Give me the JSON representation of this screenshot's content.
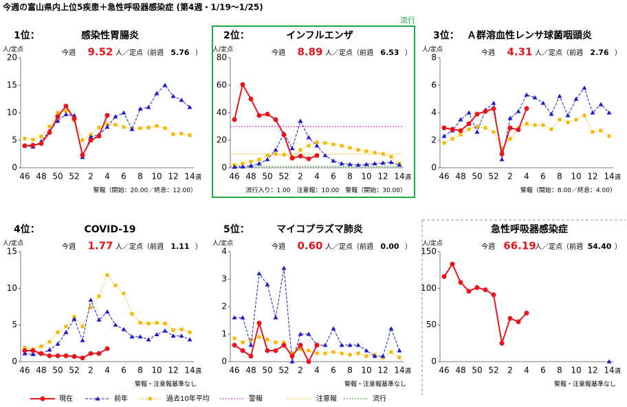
{
  "title": "今週の富山県内上位5疾患＋急性呼吸器感染症 (第4週・1/19～1/25)",
  "legend": [
    {
      "name": "現在",
      "color": "#e8141b",
      "style": "solid",
      "marker": "circle"
    },
    {
      "name": "前年",
      "color": "#1a1acc",
      "style": "dashed",
      "marker": "triangle"
    },
    {
      "name": "過去10年平均",
      "color": "#f5b800",
      "style": "dotted",
      "marker": "square"
    },
    {
      "name": "警報",
      "color": "#e000e0",
      "style": "dotted"
    },
    {
      "name": "注意報",
      "color": "#f5b800",
      "style": "dotted"
    },
    {
      "name": "流行",
      "color": "#2a9a2a",
      "style": "dotted"
    }
  ],
  "chart_data": [
    {
      "type": "line",
      "rank": "1位：",
      "title": "感染性胃腸炎",
      "this_week_label": "今週",
      "this_week": "9.52",
      "unit_text": "人／定点（前週",
      "prev_week": "5.76",
      "close": "）",
      "y_label": "人/定点",
      "x_unit": "週",
      "note": "警報（開始：20.00／終息：12.00）",
      "categories": [
        46,
        null,
        48,
        null,
        50,
        null,
        52,
        null,
        2,
        null,
        4,
        null,
        6,
        null,
        8,
        null,
        10,
        null,
        12,
        null,
        14
      ],
      "ylim": [
        0,
        20
      ],
      "yticks": [
        0,
        5,
        10,
        15,
        20
      ],
      "series": [
        {
          "color": "#e8141b",
          "style": "solid",
          "marker": "circle",
          "values": [
            4.0,
            4.1,
            4.4,
            6.4,
            9.3,
            11.2,
            8.9,
            2.3,
            5.0,
            5.76,
            9.52,
            null,
            null,
            null,
            null,
            null,
            null,
            null,
            null,
            null,
            null
          ]
        },
        {
          "color": "#1a1acc",
          "style": "dashed",
          "marker": "triangle",
          "values": [
            4.0,
            3.8,
            4.8,
            6.7,
            8.5,
            9.7,
            9.5,
            1.9,
            5.6,
            6.0,
            7.4,
            9.3,
            10.0,
            7.0,
            10.7,
            11.0,
            13.5,
            15.0,
            13.0,
            12.3,
            11.0
          ]
        },
        {
          "color": "#f5b800",
          "style": "dotted",
          "marker": "square",
          "values": [
            5.3,
            5.1,
            5.7,
            7.5,
            10.0,
            10.3,
            8.6,
            5.0,
            6.0,
            7.3,
            7.9,
            7.8,
            7.4,
            7.1,
            7.2,
            7.3,
            7.6,
            7.2,
            6.1,
            6.2,
            5.9
          ]
        }
      ]
    },
    {
      "type": "line",
      "rank": "2位：",
      "title": "インフルエンザ",
      "status": "流行",
      "this_week_label": "今週",
      "this_week": "8.89",
      "unit_text": "人／定点（前週",
      "prev_week": "6.53",
      "close": "）",
      "y_label": "人/定点",
      "x_unit": "週",
      "note": "流行入り：1.00　注意報：10.00　警報（開始：30.00）",
      "categories": [
        46,
        null,
        48,
        null,
        50,
        null,
        52,
        null,
        2,
        null,
        4,
        null,
        6,
        null,
        8,
        null,
        10,
        null,
        12,
        null,
        14
      ],
      "ylim": [
        0,
        80
      ],
      "yticks": [
        0,
        20,
        40,
        60,
        80
      ],
      "thresholds": [
        {
          "value": 30,
          "color": "#e000e0"
        },
        {
          "value": 10,
          "color": "#f5b800"
        },
        {
          "value": 1,
          "color": "#2a9a2a"
        }
      ],
      "series": [
        {
          "color": "#e8141b",
          "style": "solid",
          "marker": "circle",
          "values": [
            35,
            60.5,
            50,
            38,
            39,
            35,
            24,
            7,
            8.5,
            6.53,
            8.89,
            null,
            null,
            null,
            null,
            null,
            null,
            null,
            null,
            null,
            null
          ]
        },
        {
          "color": "#1a1acc",
          "style": "dashed",
          "marker": "triangle",
          "values": [
            0.5,
            0.7,
            1.5,
            3,
            6,
            13,
            25,
            14,
            34,
            22,
            16,
            9,
            5,
            3,
            2.5,
            2,
            2.5,
            3,
            3.5,
            4,
            2
          ]
        },
        {
          "color": "#f5b800",
          "style": "dotted",
          "marker": "square",
          "values": [
            2,
            3,
            4.5,
            6,
            9,
            10,
            9.5,
            8,
            13,
            16,
            18.5,
            18,
            17,
            16,
            14.5,
            13,
            12,
            11,
            10,
            8,
            3
          ]
        }
      ]
    },
    {
      "type": "line",
      "rank": "3位：",
      "title": "Ａ群溶血性レンサ球菌咽頭炎",
      "this_week_label": "今週",
      "this_week": "4.31",
      "unit_text": "人／定点（前週",
      "prev_week": "2.76",
      "close": "）",
      "y_label": "人/定点",
      "x_unit": "週",
      "note": "警報（開始：8.00／終息：4.00）",
      "categories": [
        46,
        null,
        48,
        null,
        50,
        null,
        52,
        null,
        2,
        null,
        4,
        null,
        6,
        null,
        8,
        null,
        10,
        null,
        12,
        null,
        14
      ],
      "ylim": [
        0,
        8
      ],
      "yticks": [
        0,
        2,
        4,
        6,
        8
      ],
      "series": [
        {
          "color": "#e8141b",
          "style": "solid",
          "marker": "circle",
          "values": [
            2.9,
            2.8,
            2.7,
            3.2,
            3.9,
            4.1,
            4.3,
            1.0,
            2.9,
            2.76,
            4.31,
            null,
            null,
            null,
            null,
            null,
            null,
            null,
            null,
            null,
            null
          ]
        },
        {
          "color": "#1a1acc",
          "style": "dashed",
          "marker": "triangle",
          "values": [
            2.3,
            2.7,
            3.5,
            4.0,
            2.6,
            4.2,
            4.7,
            0.6,
            3.6,
            4.1,
            5.3,
            5.1,
            4.7,
            3.9,
            5.2,
            3.8,
            5.0,
            5.8,
            4.0,
            4.6,
            4.0
          ]
        },
        {
          "color": "#f5b800",
          "style": "dotted",
          "marker": "square",
          "values": [
            1.8,
            2.1,
            2.4,
            2.8,
            3.0,
            2.9,
            2.6,
            1.4,
            2.1,
            2.9,
            3.2,
            3.1,
            3.1,
            2.8,
            3.5,
            3.3,
            3.5,
            3.8,
            2.6,
            2.7,
            2.3
          ]
        }
      ]
    },
    {
      "type": "line",
      "rank": "4位：",
      "title": "COVID-19",
      "this_week_label": "今週",
      "this_week": "1.77",
      "unit_text": "人／定点（前週",
      "prev_week": "1.11",
      "close": "）",
      "y_label": "人/定点",
      "x_unit": "週",
      "note": "警報・注意報基準なし",
      "categories": [
        46,
        null,
        48,
        null,
        50,
        null,
        52,
        null,
        2,
        null,
        4,
        null,
        6,
        null,
        8,
        null,
        10,
        null,
        12,
        null,
        14
      ],
      "ylim": [
        0,
        15
      ],
      "yticks": [
        0,
        5,
        10,
        15
      ],
      "series": [
        {
          "color": "#e8141b",
          "style": "solid",
          "marker": "circle",
          "values": [
            1.5,
            1.5,
            1.1,
            0.8,
            0.8,
            0.8,
            0.7,
            0.5,
            1.1,
            1.11,
            1.77,
            null,
            null,
            null,
            null,
            null,
            null,
            null,
            null,
            null,
            null
          ]
        },
        {
          "color": "#1a1acc",
          "style": "dashed",
          "marker": "triangle",
          "values": [
            1.1,
            1.0,
            1.1,
            1.6,
            2.4,
            4.0,
            5.8,
            2.9,
            8.4,
            5.7,
            6.8,
            5.0,
            4.4,
            3.4,
            3.4,
            3.0,
            3.7,
            4.2,
            3.5,
            3.5,
            3.0
          ]
        },
        {
          "color": "#f5b800",
          "style": "dotted",
          "marker": "square",
          "values": [
            1.9,
            1.7,
            2.1,
            2.7,
            4.0,
            4.8,
            6.1,
            4.8,
            7.4,
            8.9,
            11.8,
            10.4,
            9.3,
            6.5,
            5.3,
            5.2,
            5.3,
            5.2,
            4.3,
            4.4,
            4.0
          ]
        }
      ]
    },
    {
      "type": "line",
      "rank": "5位：",
      "title": "マイコプラズマ肺炎",
      "this_week_label": "今週",
      "this_week": "0.60",
      "unit_text": "人／定点（前週",
      "prev_week": "0.00",
      "close": "）",
      "y_label": "人/定点",
      "x_unit": "週",
      "note": "警報・注意報基準なし",
      "categories": [
        46,
        null,
        48,
        null,
        50,
        null,
        52,
        null,
        2,
        null,
        4,
        null,
        6,
        null,
        8,
        null,
        10,
        null,
        12,
        null,
        14
      ],
      "ylim": [
        0,
        4
      ],
      "yticks": [
        0,
        1,
        2,
        3,
        4
      ],
      "series": [
        {
          "color": "#e8141b",
          "style": "solid",
          "marker": "circle",
          "values": [
            0.6,
            0.4,
            0.2,
            1.4,
            0.4,
            0.4,
            0.6,
            0.2,
            0.6,
            0.0,
            0.6,
            null,
            null,
            null,
            null,
            null,
            null,
            null,
            null,
            null,
            null
          ]
        },
        {
          "color": "#1a1acc",
          "style": "dashed",
          "marker": "triangle",
          "values": [
            1.6,
            1.6,
            0.6,
            3.2,
            2.8,
            1.6,
            3.4,
            0.0,
            1.0,
            1.0,
            0.6,
            0.6,
            1.2,
            0.6,
            0.6,
            0.6,
            0.4,
            0.2,
            0.2,
            1.2,
            0.4
          ]
        },
        {
          "color": "#f5b800",
          "style": "dotted",
          "marker": "square",
          "values": [
            0.85,
            0.7,
            0.8,
            0.9,
            0.8,
            0.7,
            0.7,
            0.3,
            0.45,
            0.4,
            0.3,
            0.3,
            0.35,
            0.3,
            0.25,
            0.3,
            0.2,
            0.25,
            0.15,
            0.35,
            0.15
          ]
        }
      ]
    },
    {
      "type": "line",
      "title": "急性呼吸器感染症",
      "this_week_label": "今週",
      "this_week": "66.19",
      "unit_text": "人／定点（前週",
      "prev_week": "54.40",
      "close": "）",
      "y_label": "人/定点",
      "x_unit": "週",
      "note": "警報・注意報基準なし",
      "categories": [
        46,
        null,
        48,
        null,
        50,
        null,
        52,
        null,
        2,
        null,
        4,
        null,
        6,
        null,
        8,
        null,
        10,
        null,
        12,
        null,
        14
      ],
      "ylim": [
        0,
        150
      ],
      "yticks": [
        0,
        50,
        100,
        150
      ],
      "series": [
        {
          "color": "#e8141b",
          "style": "solid",
          "marker": "circle",
          "values": [
            116,
            133,
            108,
            96,
            101,
            98,
            91,
            25,
            59,
            54.4,
            66.19,
            null,
            null,
            null,
            null,
            null,
            null,
            null,
            null,
            null,
            null
          ]
        },
        {
          "color": "#1a1acc",
          "style": "dashed",
          "marker": "triangle",
          "values": [
            null,
            null,
            null,
            null,
            null,
            null,
            null,
            null,
            null,
            null,
            null,
            null,
            null,
            null,
            null,
            null,
            null,
            null,
            null,
            null,
            0
          ]
        }
      ]
    }
  ]
}
